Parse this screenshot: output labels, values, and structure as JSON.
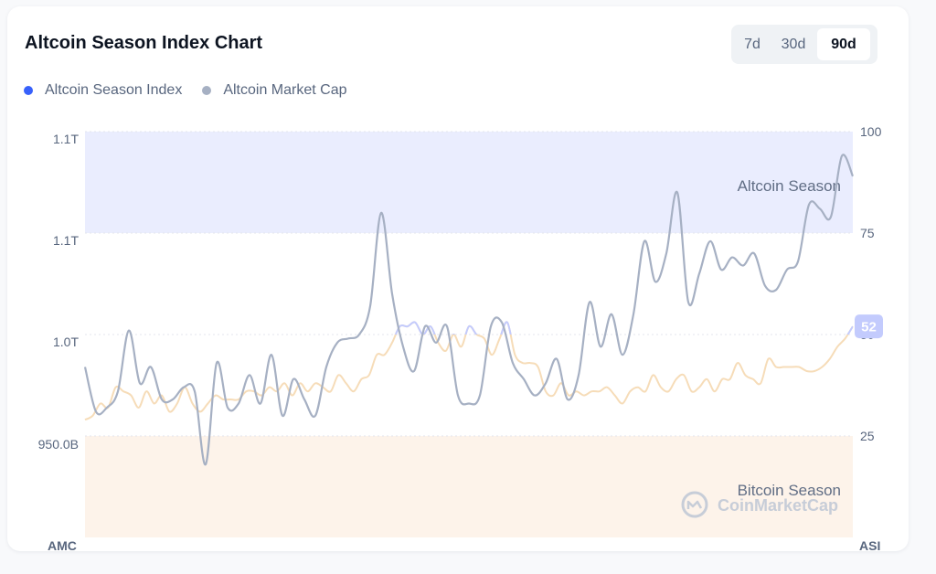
{
  "card": {
    "title": "Altcoin Season Index Chart"
  },
  "range": {
    "options": [
      {
        "label": "7d",
        "active": false
      },
      {
        "label": "30d",
        "active": false
      },
      {
        "label": "90d",
        "active": true
      }
    ]
  },
  "legend": {
    "items": [
      {
        "label": "Altcoin Season Index",
        "color": "#3861fb"
      },
      {
        "label": "Altcoin Market Cap",
        "color": "#a6b0c3"
      }
    ]
  },
  "chart_data": {
    "type": "line",
    "grid": true,
    "y_left": {
      "label": "AMC",
      "ticks": [
        "1.1T",
        "1.1T",
        "1.0T",
        "950.0B"
      ]
    },
    "y_right": {
      "label": "ASI",
      "ticks": [
        100,
        75,
        50,
        25
      ],
      "range": [
        0,
        100
      ]
    },
    "bands": [
      {
        "label": "Altcoin Season",
        "from": 75,
        "to": 100,
        "color": "#eaedfe"
      },
      {
        "label": "Bitcoin Season",
        "from": 0,
        "to": 25,
        "color": "#fdf3ea"
      }
    ],
    "current_value": {
      "label": "52",
      "value": 52
    },
    "watermark": "CoinMarketCap",
    "series": [
      {
        "name": "Altcoin Season Index",
        "axis": "right",
        "values": [
          29,
          30,
          33,
          32,
          37,
          36,
          35,
          32,
          36,
          33,
          35,
          31,
          33,
          37,
          33,
          31,
          33,
          35,
          34,
          34,
          34,
          36,
          36,
          35,
          37,
          36,
          38,
          35,
          38,
          36,
          38,
          37,
          36,
          40,
          38,
          36,
          39,
          40,
          45,
          45,
          48,
          52,
          52,
          53,
          50,
          52,
          48,
          46,
          50,
          47,
          52,
          50,
          49,
          45,
          49,
          53,
          45,
          43,
          43,
          42,
          36,
          35,
          38,
          35,
          36,
          35,
          36,
          36,
          37,
          35,
          33,
          36,
          37,
          36,
          40,
          37,
          36,
          39,
          40,
          36,
          37,
          39,
          36,
          39,
          39,
          43,
          40,
          39,
          38,
          44,
          42,
          42,
          42,
          42,
          41,
          41,
          42,
          44,
          47,
          49,
          52
        ]
      },
      {
        "name": "Altcoin Market Cap",
        "axis": "right",
        "values": [
          42,
          31,
          32,
          36,
          51,
          38,
          42,
          34,
          34,
          37,
          36,
          18,
          43,
          32,
          33,
          40,
          33,
          45,
          30,
          39,
          34,
          30,
          42,
          48,
          49,
          50,
          57,
          80,
          60,
          47,
          41,
          52,
          48,
          52,
          35,
          33,
          35,
          52,
          53,
          43,
          39,
          35,
          38,
          44,
          34,
          40,
          58,
          47,
          55,
          45,
          55,
          73,
          63,
          70,
          85,
          58,
          65,
          73,
          66,
          69,
          67,
          70,
          62,
          61,
          66,
          68,
          82,
          81,
          79,
          94,
          89
        ]
      }
    ]
  }
}
